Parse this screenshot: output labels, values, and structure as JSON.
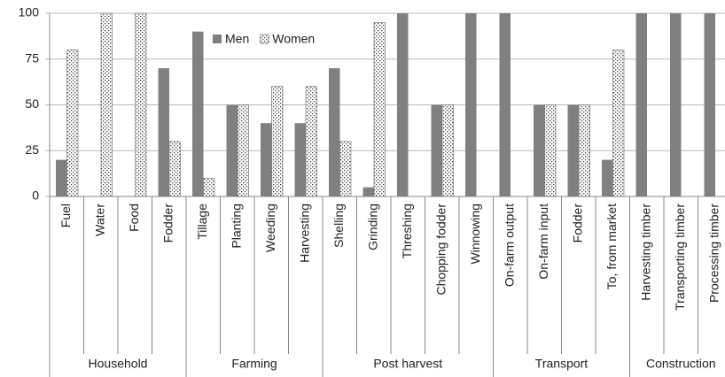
{
  "chart_data": {
    "type": "bar",
    "groups": [
      {
        "name": "Household",
        "categories": [
          "Fuel",
          "Water",
          "Food",
          "Fodder"
        ]
      },
      {
        "name": "Farming",
        "categories": [
          "Tillage",
          "Planting",
          "Weeding",
          "Harvesting"
        ]
      },
      {
        "name": "Post harvest",
        "categories": [
          "Shelling",
          "Grinding",
          "Threshing",
          "Chopping fodder",
          "Winnowing"
        ]
      },
      {
        "name": "Transport",
        "categories": [
          "On-farm output",
          "On-farm input",
          "Fodder",
          "To, from market"
        ]
      },
      {
        "name": "Construction",
        "categories": [
          "Harvesting timber",
          "Transporting timber",
          "Processing timber"
        ]
      }
    ],
    "series": [
      {
        "name": "Men",
        "color": "#808080",
        "values": [
          20,
          0,
          0,
          70,
          90,
          50,
          40,
          40,
          70,
          5,
          100,
          50,
          100,
          100,
          50,
          50,
          20,
          100,
          100,
          100
        ]
      },
      {
        "name": "Women",
        "color": "#ffffff",
        "pattern": "dots",
        "values": [
          80,
          100,
          100,
          30,
          10,
          50,
          60,
          60,
          30,
          95,
          0,
          50,
          0,
          0,
          50,
          50,
          80,
          0,
          0,
          0
        ]
      }
    ],
    "ylim": [
      0,
      100
    ],
    "yticks": [
      0,
      25,
      50,
      75,
      100
    ],
    "grid": true,
    "legend": "top"
  }
}
